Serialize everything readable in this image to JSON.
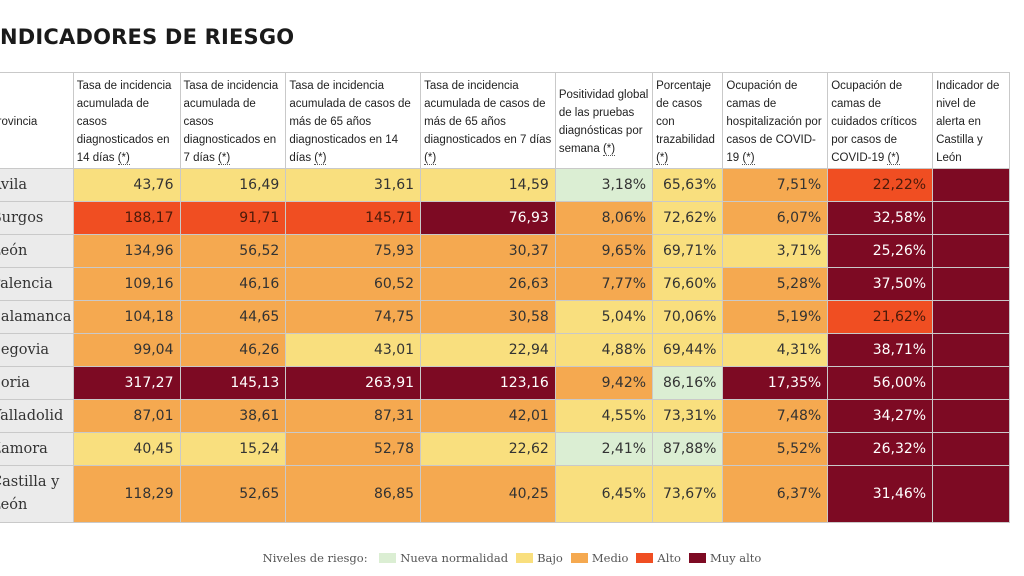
{
  "title": "INDICADORES DE RIESGO",
  "headers": [
    {
      "text": "Provincia",
      "ast": ""
    },
    {
      "text": "Tasa de incidencia acumulada de casos diagnosticados en 14 días",
      "ast": "(*)"
    },
    {
      "text": "Tasa de incidencia acumulada de casos diagnosticados en 7 días",
      "ast": "(*)"
    },
    {
      "text": "Tasa de incidencia acumulada de casos de más de 65 años diagnosticados en 14 días",
      "ast": "(*)"
    },
    {
      "text": "Tasa de incidencia acumulada de casos de más de 65 años diagnosticados en 7 días",
      "ast": "(*)"
    },
    {
      "text": "Positividad global de las pruebas diagnósticas por semana",
      "ast": "(*)"
    },
    {
      "text": "Porcentaje de casos con trazabilidad",
      "ast": "(*)"
    },
    {
      "text": "Ocupación de camas de hospitalización por casos de COVID-19",
      "ast": "(*)"
    },
    {
      "text": "Ocupación de camas de cuidados críticos por casos de COVID-19",
      "ast": "(*)"
    },
    {
      "text": "Indicador de nivel de alerta en Castilla y León",
      "ast": ""
    }
  ],
  "rows": [
    {
      "provincia": "Ávila",
      "cells": [
        {
          "v": "43,76",
          "l": "bajo"
        },
        {
          "v": "16,49",
          "l": "bajo"
        },
        {
          "v": "31,61",
          "l": "bajo"
        },
        {
          "v": "14,59",
          "l": "bajo"
        },
        {
          "v": "3,18%",
          "l": "nueva"
        },
        {
          "v": "65,63%",
          "l": "bajo"
        },
        {
          "v": "7,51%",
          "l": "medio"
        },
        {
          "v": "22,22%",
          "l": "alto"
        },
        {
          "v": "",
          "l": "muyalto"
        }
      ]
    },
    {
      "provincia": "Burgos",
      "cells": [
        {
          "v": "188,17",
          "l": "alto"
        },
        {
          "v": "91,71",
          "l": "alto"
        },
        {
          "v": "145,71",
          "l": "alto"
        },
        {
          "v": "76,93",
          "l": "muyalto"
        },
        {
          "v": "8,06%",
          "l": "medio"
        },
        {
          "v": "72,62%",
          "l": "bajo"
        },
        {
          "v": "6,07%",
          "l": "medio"
        },
        {
          "v": "32,58%",
          "l": "muyalto"
        },
        {
          "v": "",
          "l": "muyalto"
        }
      ]
    },
    {
      "provincia": "León",
      "cells": [
        {
          "v": "134,96",
          "l": "medio"
        },
        {
          "v": "56,52",
          "l": "medio"
        },
        {
          "v": "75,93",
          "l": "medio"
        },
        {
          "v": "30,37",
          "l": "medio"
        },
        {
          "v": "9,65%",
          "l": "medio"
        },
        {
          "v": "69,71%",
          "l": "bajo"
        },
        {
          "v": "3,71%",
          "l": "bajo"
        },
        {
          "v": "25,26%",
          "l": "muyalto"
        },
        {
          "v": "",
          "l": "muyalto"
        }
      ]
    },
    {
      "provincia": "Palencia",
      "cells": [
        {
          "v": "109,16",
          "l": "medio"
        },
        {
          "v": "46,16",
          "l": "medio"
        },
        {
          "v": "60,52",
          "l": "medio"
        },
        {
          "v": "26,63",
          "l": "medio"
        },
        {
          "v": "7,77%",
          "l": "medio"
        },
        {
          "v": "76,60%",
          "l": "bajo"
        },
        {
          "v": "5,28%",
          "l": "medio"
        },
        {
          "v": "37,50%",
          "l": "muyalto"
        },
        {
          "v": "",
          "l": "muyalto"
        }
      ]
    },
    {
      "provincia": "Salamanca",
      "cells": [
        {
          "v": "104,18",
          "l": "medio"
        },
        {
          "v": "44,65",
          "l": "medio"
        },
        {
          "v": "74,75",
          "l": "medio"
        },
        {
          "v": "30,58",
          "l": "medio"
        },
        {
          "v": "5,04%",
          "l": "bajo"
        },
        {
          "v": "70,06%",
          "l": "bajo"
        },
        {
          "v": "5,19%",
          "l": "medio"
        },
        {
          "v": "21,62%",
          "l": "alto"
        },
        {
          "v": "",
          "l": "muyalto"
        }
      ]
    },
    {
      "provincia": "Segovia",
      "cells": [
        {
          "v": "99,04",
          "l": "medio"
        },
        {
          "v": "46,26",
          "l": "medio"
        },
        {
          "v": "43,01",
          "l": "bajo"
        },
        {
          "v": "22,94",
          "l": "bajo"
        },
        {
          "v": "4,88%",
          "l": "bajo"
        },
        {
          "v": "69,44%",
          "l": "bajo"
        },
        {
          "v": "4,31%",
          "l": "bajo"
        },
        {
          "v": "38,71%",
          "l": "muyalto"
        },
        {
          "v": "",
          "l": "muyalto"
        }
      ]
    },
    {
      "provincia": "Soria",
      "cells": [
        {
          "v": "317,27",
          "l": "muyalto"
        },
        {
          "v": "145,13",
          "l": "muyalto"
        },
        {
          "v": "263,91",
          "l": "muyalto"
        },
        {
          "v": "123,16",
          "l": "muyalto"
        },
        {
          "v": "9,42%",
          "l": "medio"
        },
        {
          "v": "86,16%",
          "l": "nueva"
        },
        {
          "v": "17,35%",
          "l": "muyalto"
        },
        {
          "v": "56,00%",
          "l": "muyalto"
        },
        {
          "v": "",
          "l": "muyalto"
        }
      ]
    },
    {
      "provincia": "Valladolid",
      "cells": [
        {
          "v": "87,01",
          "l": "medio"
        },
        {
          "v": "38,61",
          "l": "medio"
        },
        {
          "v": "87,31",
          "l": "medio"
        },
        {
          "v": "42,01",
          "l": "medio"
        },
        {
          "v": "4,55%",
          "l": "bajo"
        },
        {
          "v": "73,31%",
          "l": "bajo"
        },
        {
          "v": "7,48%",
          "l": "medio"
        },
        {
          "v": "34,27%",
          "l": "muyalto"
        },
        {
          "v": "",
          "l": "muyalto"
        }
      ]
    },
    {
      "provincia": "Zamora",
      "cells": [
        {
          "v": "40,45",
          "l": "bajo"
        },
        {
          "v": "15,24",
          "l": "bajo"
        },
        {
          "v": "52,78",
          "l": "medio"
        },
        {
          "v": "22,62",
          "l": "bajo"
        },
        {
          "v": "2,41%",
          "l": "nueva"
        },
        {
          "v": "87,88%",
          "l": "nueva"
        },
        {
          "v": "5,52%",
          "l": "medio"
        },
        {
          "v": "26,32%",
          "l": "muyalto"
        },
        {
          "v": "",
          "l": "muyalto"
        }
      ]
    },
    {
      "provincia": "Castilla y León",
      "cells": [
        {
          "v": "118,29",
          "l": "medio"
        },
        {
          "v": "52,65",
          "l": "medio"
        },
        {
          "v": "86,85",
          "l": "medio"
        },
        {
          "v": "40,25",
          "l": "medio"
        },
        {
          "v": "6,45%",
          "l": "bajo"
        },
        {
          "v": "73,67%",
          "l": "bajo"
        },
        {
          "v": "6,37%",
          "l": "medio"
        },
        {
          "v": "31,46%",
          "l": "muyalto"
        },
        {
          "v": "",
          "l": "muyalto"
        }
      ]
    }
  ],
  "legend": {
    "label": "Niveles de riesgo:",
    "items": [
      {
        "key": "nueva",
        "label": "Nueva normalidad",
        "color": "#dbeed3"
      },
      {
        "key": "bajo",
        "label": "Bajo",
        "color": "#f9df7e"
      },
      {
        "key": "medio",
        "label": "Medio",
        "color": "#f5a950"
      },
      {
        "key": "alto",
        "label": "Alto",
        "color": "#f04e22"
      },
      {
        "key": "muyalto",
        "label": "Muy alto",
        "color": "#7d0a23"
      }
    ]
  }
}
